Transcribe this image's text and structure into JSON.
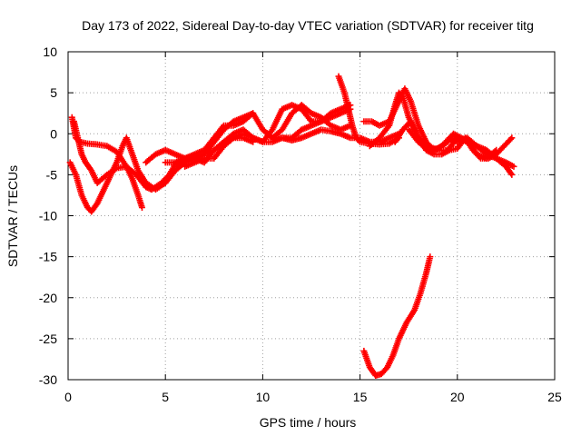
{
  "chart_data": {
    "type": "scatter",
    "title": "Day 173 of 2022, Sidereal Day-to-day VTEC variation (SDTVAR) for receiver titg",
    "xlabel": "GPS time / hours",
    "ylabel": "SDTVAR / TECUs",
    "xlim": [
      0,
      25
    ],
    "ylim": [
      -30,
      10
    ],
    "xticks": [
      0,
      5,
      10,
      15,
      20,
      25
    ],
    "yticks": [
      -30,
      -25,
      -20,
      -15,
      -10,
      -5,
      0,
      5,
      10
    ],
    "grid": true,
    "marker": "plus",
    "color": "#ff0000",
    "series": [
      {
        "name": "track-1",
        "points": [
          [
            0.2,
            2.0
          ],
          [
            0.4,
            -0.5
          ],
          [
            0.6,
            -1.0
          ],
          [
            1.0,
            -1.2
          ],
          [
            1.5,
            -1.3
          ],
          [
            2.0,
            -1.5
          ],
          [
            2.5,
            -2.2
          ],
          [
            3.0,
            -4.0
          ],
          [
            3.3,
            -5.5
          ],
          [
            3.6,
            -7.5
          ],
          [
            3.8,
            -9.0
          ]
        ]
      },
      {
        "name": "track-2",
        "points": [
          [
            0.1,
            -3.5
          ],
          [
            0.4,
            -5.0
          ],
          [
            0.7,
            -7.5
          ],
          [
            1.0,
            -9.0
          ],
          [
            1.2,
            -9.5
          ],
          [
            1.5,
            -8.5
          ],
          [
            2.0,
            -6.0
          ],
          [
            2.5,
            -3.5
          ],
          [
            2.8,
            -1.5
          ],
          [
            3.0,
            -0.5
          ],
          [
            3.3,
            -2.5
          ],
          [
            3.6,
            -4.5
          ],
          [
            4.0,
            -6.0
          ],
          [
            4.5,
            -6.8
          ],
          [
            5.0,
            -6.0
          ],
          [
            5.5,
            -4.5
          ],
          [
            6.0,
            -3.5
          ],
          [
            6.5,
            -3.0
          ],
          [
            7.0,
            -2.5
          ],
          [
            7.5,
            -2.0
          ],
          [
            8.0,
            -1.0
          ],
          [
            8.5,
            -0.5
          ],
          [
            9.0,
            -0.5
          ],
          [
            9.5,
            -1.0
          ]
        ]
      },
      {
        "name": "track-3",
        "points": [
          [
            0.3,
            1.5
          ],
          [
            0.5,
            -0.5
          ],
          [
            0.7,
            -2.5
          ],
          [
            0.9,
            -3.5
          ],
          [
            1.2,
            -4.5
          ],
          [
            1.5,
            -6.0
          ],
          [
            2.0,
            -5.0
          ],
          [
            2.5,
            -4.2
          ],
          [
            3.0,
            -4.0
          ],
          [
            3.5,
            -5.0
          ],
          [
            4.0,
            -6.5
          ],
          [
            4.3,
            -6.8
          ],
          [
            4.8,
            -6.0
          ],
          [
            5.2,
            -5.0
          ],
          [
            5.5,
            -3.8
          ],
          [
            6.0,
            -3.0
          ],
          [
            6.5,
            -2.8
          ],
          [
            7.0,
            -2.5
          ],
          [
            7.5,
            -1.0
          ],
          [
            8.0,
            0.5
          ],
          [
            8.5,
            1.5
          ],
          [
            9.0,
            2.0
          ],
          [
            9.5,
            2.5
          ]
        ]
      },
      {
        "name": "track-4",
        "points": [
          [
            4.0,
            -3.5
          ],
          [
            4.5,
            -2.5
          ],
          [
            5.0,
            -2.0
          ],
          [
            5.5,
            -2.5
          ],
          [
            6.0,
            -3.0
          ],
          [
            6.5,
            -2.5
          ],
          [
            7.0,
            -2.0
          ],
          [
            7.5,
            -0.5
          ],
          [
            8.0,
            1.0
          ],
          [
            8.5,
            1.0
          ],
          [
            9.0,
            1.5
          ],
          [
            9.5,
            2.5
          ],
          [
            10.0,
            0.5
          ],
          [
            10.5,
            -0.5
          ],
          [
            11.0,
            0.5
          ],
          [
            11.5,
            2.5
          ],
          [
            12.0,
            3.5
          ],
          [
            12.5,
            2.5
          ],
          [
            13.0,
            2.0
          ],
          [
            13.5,
            1.0
          ],
          [
            14.0,
            0.5
          ],
          [
            14.5,
            1.0
          ]
        ]
      },
      {
        "name": "track-5",
        "points": [
          [
            5.0,
            -3.5
          ],
          [
            5.5,
            -3.5
          ],
          [
            6.0,
            -3.0
          ],
          [
            6.5,
            -3.0
          ],
          [
            7.0,
            -3.5
          ],
          [
            7.5,
            -2.0
          ],
          [
            8.0,
            -1.0
          ],
          [
            8.5,
            0.0
          ],
          [
            9.0,
            0.5
          ],
          [
            9.5,
            -0.5
          ],
          [
            10.0,
            -1.0
          ],
          [
            10.5,
            0.5
          ],
          [
            11.0,
            3.0
          ],
          [
            11.5,
            3.5
          ],
          [
            12.0,
            3.0
          ],
          [
            12.5,
            1.5
          ],
          [
            13.0,
            1.5
          ],
          [
            13.5,
            2.0
          ],
          [
            14.0,
            2.5
          ],
          [
            14.5,
            3.0
          ]
        ]
      },
      {
        "name": "track-6",
        "points": [
          [
            6.0,
            -4.0
          ],
          [
            6.5,
            -3.5
          ],
          [
            7.0,
            -3.0
          ],
          [
            7.5,
            -3.0
          ],
          [
            8.0,
            -1.5
          ],
          [
            8.5,
            -0.5
          ],
          [
            9.0,
            0.0
          ],
          [
            9.5,
            -0.5
          ],
          [
            10.0,
            -1.0
          ],
          [
            10.5,
            -1.0
          ],
          [
            11.0,
            -0.5
          ],
          [
            11.5,
            -0.5
          ],
          [
            12.0,
            0.5
          ],
          [
            12.5,
            1.0
          ],
          [
            13.0,
            1.5
          ],
          [
            13.5,
            2.5
          ],
          [
            14.0,
            3.0
          ],
          [
            14.5,
            3.5
          ]
        ]
      },
      {
        "name": "track-7",
        "points": [
          [
            10.0,
            0.5
          ],
          [
            10.5,
            -0.5
          ],
          [
            11.0,
            -0.5
          ],
          [
            11.5,
            -0.8
          ],
          [
            12.0,
            -0.5
          ],
          [
            12.5,
            0.0
          ],
          [
            13.0,
            0.5
          ],
          [
            13.5,
            0.3
          ],
          [
            14.0,
            0.0
          ],
          [
            14.5,
            -0.5
          ],
          [
            15.0,
            -0.5
          ],
          [
            15.5,
            -1.0
          ],
          [
            16.0,
            -1.0
          ],
          [
            16.5,
            -0.5
          ],
          [
            17.0,
            0.0
          ]
        ]
      },
      {
        "name": "track-8",
        "points": [
          [
            13.9,
            7.0
          ],
          [
            14.2,
            5.0
          ],
          [
            14.4,
            3.0
          ],
          [
            14.6,
            1.0
          ],
          [
            14.8,
            -0.5
          ],
          [
            15.0,
            -1.0
          ],
          [
            15.5,
            -1.2
          ],
          [
            16.0,
            -1.3
          ],
          [
            16.5,
            -1.2
          ],
          [
            17.0,
            -0.5
          ]
        ]
      },
      {
        "name": "track-9",
        "points": [
          [
            15.2,
            1.5
          ],
          [
            15.6,
            1.5
          ],
          [
            16.0,
            1.0
          ],
          [
            16.5,
            1.5
          ],
          [
            17.0,
            4.0
          ],
          [
            17.3,
            5.5
          ],
          [
            17.6,
            4.0
          ],
          [
            18.0,
            1.0
          ],
          [
            18.4,
            -1.0
          ],
          [
            18.8,
            -2.0
          ],
          [
            19.2,
            -1.5
          ],
          [
            19.6,
            -0.5
          ],
          [
            20.0,
            -1.0
          ],
          [
            20.5,
            -0.5
          ],
          [
            21.0,
            -1.5
          ],
          [
            21.5,
            -2.0
          ],
          [
            22.0,
            -3.0
          ],
          [
            22.5,
            -4.0
          ],
          [
            22.8,
            -5.0
          ]
        ]
      },
      {
        "name": "track-10",
        "points": [
          [
            15.5,
            -1.5
          ],
          [
            16.0,
            -0.5
          ],
          [
            16.5,
            1.0
          ],
          [
            16.8,
            3.5
          ],
          [
            17.0,
            5.0
          ],
          [
            17.2,
            4.5
          ],
          [
            17.5,
            2.0
          ],
          [
            18.0,
            -0.5
          ],
          [
            18.5,
            -1.5
          ],
          [
            19.0,
            -2.0
          ],
          [
            19.5,
            -2.0
          ],
          [
            20.0,
            -0.5
          ],
          [
            20.5,
            -1.0
          ],
          [
            21.0,
            -1.5
          ],
          [
            21.5,
            -2.5
          ],
          [
            22.0,
            -3.0
          ],
          [
            22.5,
            -3.5
          ],
          [
            22.9,
            -4.0
          ]
        ]
      },
      {
        "name": "track-11",
        "points": [
          [
            16.8,
            -1.0
          ],
          [
            17.2,
            0.5
          ],
          [
            17.6,
            1.5
          ],
          [
            18.0,
            -0.5
          ],
          [
            18.4,
            -2.0
          ],
          [
            18.8,
            -2.5
          ],
          [
            19.2,
            -2.5
          ],
          [
            19.6,
            -2.0
          ],
          [
            20.0,
            -1.8
          ],
          [
            20.4,
            -0.5
          ],
          [
            20.8,
            -2.0
          ],
          [
            21.2,
            -3.0
          ],
          [
            21.6,
            -3.0
          ],
          [
            22.0,
            -2.5
          ],
          [
            22.4,
            -1.5
          ],
          [
            22.8,
            -0.5
          ]
        ]
      },
      {
        "name": "track-12",
        "points": [
          [
            17.5,
            0.5
          ],
          [
            18.0,
            -1.0
          ],
          [
            18.5,
            -2.0
          ],
          [
            19.0,
            -1.8
          ],
          [
            19.5,
            -1.0
          ],
          [
            19.8,
            0.0
          ],
          [
            20.2,
            -0.5
          ],
          [
            20.6,
            -1.0
          ],
          [
            21.0,
            -2.5
          ],
          [
            21.5,
            -3.0
          ],
          [
            22.0,
            -2.0
          ]
        ]
      },
      {
        "name": "track-13",
        "points": [
          [
            15.2,
            -26.5
          ],
          [
            15.5,
            -28.5
          ],
          [
            15.8,
            -29.5
          ],
          [
            16.1,
            -29.3
          ],
          [
            16.4,
            -28.5
          ],
          [
            16.7,
            -27.0
          ],
          [
            17.0,
            -25.0
          ],
          [
            17.4,
            -23.0
          ],
          [
            17.8,
            -21.5
          ],
          [
            18.1,
            -19.5
          ],
          [
            18.4,
            -17.0
          ],
          [
            18.6,
            -15.0
          ]
        ]
      }
    ]
  }
}
